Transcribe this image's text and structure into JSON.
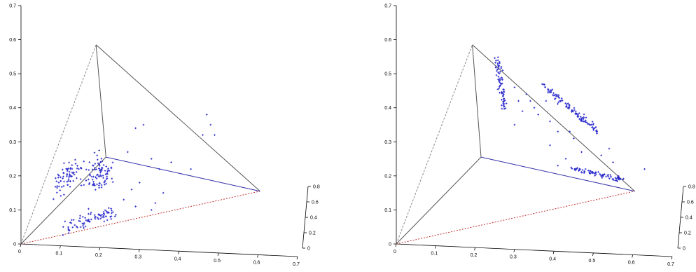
{
  "colors": {
    "point": "#2a2acc",
    "edge_blue": "#3333aa",
    "edge_gray": "#555555",
    "edge_red_dashed": "#c03030",
    "edge_gray_dashed": "#8a8a8a"
  },
  "chart_data": [
    {
      "type": "scatter",
      "projection": "3d",
      "axes": {
        "x": {
          "ticks": [
            "0",
            "0.1",
            "0.2",
            "0.3",
            "0.4",
            "0.5",
            "0.6",
            "0.7"
          ],
          "lim": [
            0,
            0.7
          ]
        },
        "y": {
          "ticks": [
            "0",
            "0.1",
            "0.2",
            "0.3",
            "0.4",
            "0.5",
            "0.6",
            "0.7"
          ],
          "lim": [
            0,
            0.7
          ]
        },
        "z": {
          "ticks": [
            "0",
            "0.2",
            "0.4",
            "0.6",
            "0.8"
          ],
          "lim": [
            0,
            0.8
          ]
        }
      },
      "grid": false,
      "tetrahedron": {
        "edges": [
          {
            "from": "origin",
            "to": "apex",
            "style": "gray-dashed"
          },
          {
            "from": "origin",
            "to": "right",
            "style": "red-dashed"
          },
          {
            "from": "origin",
            "to": "inner",
            "style": "gray-solid"
          },
          {
            "from": "apex",
            "to": "right",
            "style": "gray-solid"
          },
          {
            "from": "apex",
            "to": "inner",
            "style": "gray-solid"
          },
          {
            "from": "inner",
            "to": "right",
            "style": "blue-solid"
          }
        ]
      },
      "clusters": [
        {
          "shape": "blob",
          "center": [
            0.117,
            0.195
          ],
          "spread": [
            0.025,
            0.055
          ],
          "n": 70,
          "rot": -0.45
        },
        {
          "shape": "blob",
          "center": [
            0.196,
            0.205
          ],
          "spread": [
            0.038,
            0.055
          ],
          "n": 90,
          "rot": -0.2
        },
        {
          "shape": "line",
          "from": [
            0.117,
            0.048
          ],
          "to": [
            0.235,
            0.092
          ],
          "jitter": 0.009,
          "n": 80
        },
        {
          "shape": "scatter",
          "points": [
            [
              0.29,
              0.34
            ],
            [
              0.33,
              0.25
            ],
            [
              0.35,
              0.22
            ],
            [
              0.3,
              0.18
            ],
            [
              0.28,
              0.16
            ],
            [
              0.34,
              0.12
            ],
            [
              0.47,
              0.38
            ],
            [
              0.48,
              0.35
            ],
            [
              0.49,
              0.32
            ],
            [
              0.46,
              0.32
            ],
            [
              0.43,
              0.22
            ],
            [
              0.38,
              0.24
            ],
            [
              0.27,
              0.27
            ],
            [
              0.31,
              0.35
            ],
            [
              0.26,
              0.13
            ],
            [
              0.29,
              0.11
            ],
            [
              0.33,
              0.1
            ],
            [
              0.36,
              0.15
            ]
          ]
        }
      ]
    },
    {
      "type": "scatter",
      "projection": "3d",
      "axes": {
        "x": {
          "ticks": [
            "0",
            "0.1",
            "0.2",
            "0.3",
            "0.4",
            "0.5",
            "0.6",
            "0.7"
          ],
          "lim": [
            0,
            0.7
          ]
        },
        "y": {
          "ticks": [
            "0",
            "0.1",
            "0.2",
            "0.3",
            "0.4",
            "0.5",
            "0.6",
            "0.7"
          ],
          "lim": [
            0,
            0.7
          ]
        },
        "z": {
          "ticks": [
            "0",
            "0.2",
            "0.4",
            "0.6",
            "0.8"
          ],
          "lim": [
            0,
            0.8
          ]
        }
      },
      "grid": false,
      "tetrahedron": {
        "edges": [
          {
            "from": "origin",
            "to": "apex",
            "style": "gray-dashed"
          },
          {
            "from": "origin",
            "to": "right",
            "style": "red-dashed"
          },
          {
            "from": "origin",
            "to": "inner",
            "style": "gray-solid"
          },
          {
            "from": "apex",
            "to": "right",
            "style": "gray-solid"
          },
          {
            "from": "apex",
            "to": "inner",
            "style": "gray-solid"
          },
          {
            "from": "inner",
            "to": "right",
            "style": "blue-solid"
          }
        ]
      },
      "clusters": [
        {
          "shape": "line",
          "from": [
            0.255,
            0.545
          ],
          "to": [
            0.275,
            0.395
          ],
          "jitter": 0.003,
          "n": 70
        },
        {
          "shape": "line",
          "from": [
            0.37,
            0.47
          ],
          "to": [
            0.51,
            0.33
          ],
          "jitter": 0.004,
          "n": 110
        },
        {
          "shape": "line",
          "from": [
            0.45,
            0.22
          ],
          "to": [
            0.57,
            0.19
          ],
          "jitter": 0.004,
          "n": 80
        },
        {
          "shape": "scatter",
          "points": [
            [
              0.26,
              0.52
            ],
            [
              0.27,
              0.51
            ],
            [
              0.3,
              0.46
            ],
            [
              0.33,
              0.44
            ],
            [
              0.34,
              0.42
            ],
            [
              0.35,
              0.4
            ],
            [
              0.31,
              0.42
            ],
            [
              0.32,
              0.39
            ],
            [
              0.36,
              0.38
            ],
            [
              0.38,
              0.42
            ],
            [
              0.39,
              0.36
            ],
            [
              0.41,
              0.33
            ],
            [
              0.44,
              0.33
            ],
            [
              0.45,
              0.31
            ],
            [
              0.47,
              0.27
            ],
            [
              0.48,
              0.22
            ],
            [
              0.52,
              0.26
            ],
            [
              0.54,
              0.28
            ],
            [
              0.43,
              0.25
            ],
            [
              0.39,
              0.29
            ],
            [
              0.63,
              0.22
            ],
            [
              0.55,
              0.24
            ],
            [
              0.3,
              0.35
            ],
            [
              0.41,
              0.23
            ]
          ]
        }
      ]
    }
  ]
}
